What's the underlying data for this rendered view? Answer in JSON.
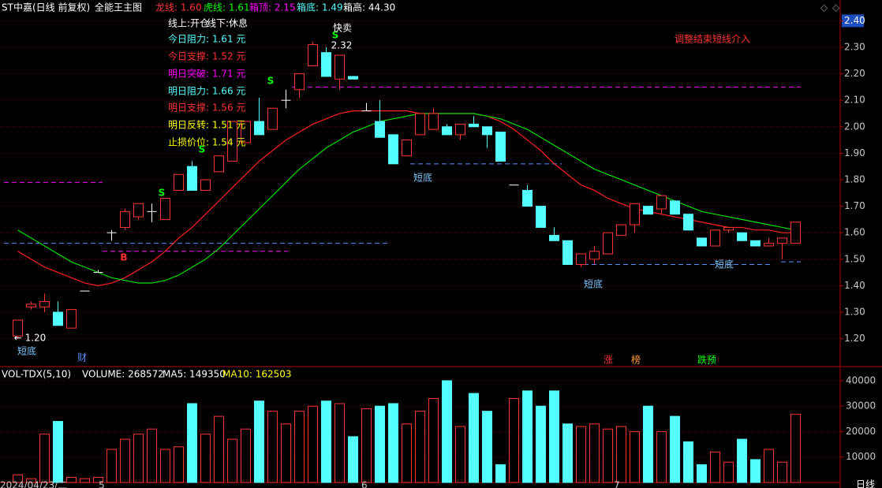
{
  "chart_data": [
    {
      "type": "candlestick",
      "title": "ST中嘉(日线 前复权)",
      "indicator": "全能王主图",
      "indicator_values": [
        {
          "text": "龙线: 1.60",
          "color": "#ff3232"
        },
        {
          "text": "虎线: 1.61",
          "color": "#00ff00"
        },
        {
          "text": "箱顶: 2.15",
          "color": "#ff00ff"
        },
        {
          "text": "箱底: 1.49",
          "color": "#54ffff"
        },
        {
          "text": "箱高: 44.30",
          "color": "#ffffff"
        }
      ],
      "info_panel": [
        {
          "text": "线上:开仓",
          "color": "#ffffff"
        },
        {
          "text": "线下:休息",
          "color": "#ffffff"
        },
        {
          "text": "今日阻力: 1.61 元",
          "color": "#54ffff"
        },
        {
          "text": "今日支撑: 1.52 元",
          "color": "#ff3232"
        },
        {
          "text": "明日突破: 1.71 元",
          "color": "#ff00ff"
        },
        {
          "text": "明日阻力: 1.66 元",
          "color": "#54ffff"
        },
        {
          "text": "明日支撑: 1.56 元",
          "color": "#ff3232"
        },
        {
          "text": "明日反转: 1.51 元",
          "color": "#ffff00"
        },
        {
          "text": "止损价位: 1.54 元",
          "color": "#ffff00"
        }
      ],
      "open": [
        1.21,
        1.32,
        1.32,
        1.3,
        1.24,
        1.38,
        1.45,
        1.6,
        1.62,
        1.66,
        1.68,
        1.65,
        1.76,
        1.85,
        1.76,
        1.83,
        1.87,
        1.94,
        2.02,
        1.99,
        2.1,
        2.14,
        2.23,
        2.28,
        2.18,
        2.19,
        2.06,
        2.02,
        1.97,
        1.89,
        1.97,
        1.99,
        2.0,
        1.97,
        2.01,
        2.0,
        1.98,
        1.78,
        1.76,
        1.7,
        1.59,
        1.57,
        1.48,
        1.5,
        1.52,
        1.59,
        1.63,
        1.7,
        1.69,
        1.72,
        1.67,
        1.58,
        1.55,
        1.61,
        1.6,
        1.57,
        1.55,
        1.56,
        1.56
      ],
      "high": [
        1.27,
        1.34,
        1.37,
        1.34,
        1.31,
        1.38,
        1.46,
        1.61,
        1.69,
        1.71,
        1.71,
        1.73,
        1.82,
        1.87,
        1.8,
        1.89,
        2.02,
        2.02,
        2.11,
        2.07,
        2.14,
        2.2,
        2.32,
        2.3,
        2.27,
        2.19,
        2.09,
        2.1,
        1.97,
        1.95,
        2.05,
        2.07,
        2.01,
        2.01,
        2.04,
        2.0,
        1.98,
        1.78,
        1.78,
        1.7,
        1.62,
        1.57,
        1.52,
        1.55,
        1.6,
        1.63,
        1.71,
        1.7,
        1.74,
        1.72,
        1.67,
        1.58,
        1.61,
        1.62,
        1.6,
        1.57,
        1.58,
        1.58,
        1.64
      ],
      "low": [
        1.2,
        1.31,
        1.3,
        1.25,
        1.24,
        1.38,
        1.45,
        1.57,
        1.61,
        1.65,
        1.64,
        1.65,
        1.76,
        1.76,
        1.76,
        1.83,
        1.87,
        1.94,
        1.97,
        1.99,
        2.07,
        2.11,
        2.23,
        2.19,
        2.14,
        2.18,
        2.06,
        1.96,
        1.86,
        1.89,
        1.97,
        1.99,
        1.97,
        1.95,
        2.0,
        1.92,
        1.87,
        1.78,
        1.7,
        1.62,
        1.57,
        1.48,
        1.47,
        1.48,
        1.52,
        1.59,
        1.6,
        1.67,
        1.67,
        1.67,
        1.61,
        1.55,
        1.55,
        1.6,
        1.57,
        1.55,
        1.55,
        1.5,
        1.56
      ],
      "close": [
        1.27,
        1.33,
        1.34,
        1.25,
        1.31,
        1.38,
        1.45,
        1.6,
        1.68,
        1.71,
        1.68,
        1.73,
        1.82,
        1.76,
        1.8,
        1.89,
        2.02,
        2.02,
        1.97,
        2.07,
        2.1,
        2.2,
        2.31,
        2.19,
        2.27,
        2.18,
        2.06,
        1.96,
        1.86,
        1.95,
        2.05,
        2.05,
        1.97,
        2.01,
        2.0,
        1.97,
        1.87,
        1.78,
        1.7,
        1.62,
        1.57,
        1.48,
        1.52,
        1.53,
        1.6,
        1.63,
        1.71,
        1.67,
        1.74,
        1.67,
        1.61,
        1.55,
        1.61,
        1.62,
        1.57,
        1.55,
        1.56,
        1.58,
        1.64
      ],
      "up_color": "#ff3232",
      "down_color": "#54ffff",
      "flat_color": "#ffffff",
      "series": [
        {
          "color": "#ff2020",
          "values": [
            1.53,
            1.5,
            1.47,
            1.45,
            1.43,
            1.41,
            1.4,
            1.41,
            1.43,
            1.46,
            1.49,
            1.53,
            1.58,
            1.62,
            1.67,
            1.72,
            1.77,
            1.82,
            1.87,
            1.91,
            1.95,
            1.98,
            2.01,
            2.03,
            2.05,
            2.06,
            2.06,
            2.06,
            2.06,
            2.06,
            2.05,
            2.05,
            2.05,
            2.05,
            2.05,
            2.04,
            2.02,
            1.99,
            1.95,
            1.91,
            1.86,
            1.82,
            1.78,
            1.76,
            1.73,
            1.71,
            1.69,
            1.68,
            1.67,
            1.66,
            1.65,
            1.64,
            1.63,
            1.62,
            1.62,
            1.61,
            1.61,
            1.6,
            1.6
          ]
        },
        {
          "color": "#00e000",
          "values": [
            1.61,
            1.58,
            1.55,
            1.52,
            1.49,
            1.47,
            1.45,
            1.43,
            1.42,
            1.41,
            1.41,
            1.42,
            1.44,
            1.47,
            1.5,
            1.54,
            1.59,
            1.64,
            1.69,
            1.74,
            1.79,
            1.84,
            1.88,
            1.92,
            1.95,
            1.98,
            2.0,
            2.02,
            2.03,
            2.04,
            2.05,
            2.05,
            2.05,
            2.05,
            2.05,
            2.04,
            2.03,
            2.01,
            1.99,
            1.96,
            1.93,
            1.9,
            1.87,
            1.84,
            1.82,
            1.8,
            1.78,
            1.76,
            1.74,
            1.72,
            1.7,
            1.68,
            1.67,
            1.66,
            1.65,
            1.64,
            1.63,
            1.62,
            1.61
          ]
        }
      ],
      "levels": [
        {
          "value": 2.15,
          "color": "#ff00ff"
        },
        {
          "value": 1.56,
          "color": "#5a8fff"
        },
        {
          "value": 1.53,
          "color": "#ff00ff"
        },
        {
          "value": 1.79,
          "color": "#ff00ff"
        },
        {
          "value": 1.86,
          "color": "#5a8fff"
        },
        {
          "value": 1.48,
          "color": "#5a8fff"
        },
        {
          "value": 1.49,
          "color": "#5a8fff"
        }
      ],
      "annotations": [
        {
          "text": "S",
          "color": "#00ff00"
        },
        {
          "text": "S",
          "color": "#00ff00"
        },
        {
          "text": "S",
          "color": "#00ff00"
        },
        {
          "text": "S",
          "color": "#00ff00"
        },
        {
          "text": "B",
          "color": "#ff3232"
        },
        {
          "text": "快卖",
          "color": "#ffffff"
        },
        {
          "text": "2.32",
          "color": "#ffffff"
        },
        {
          "text": "← 1.20",
          "color": "#ffffff"
        },
        {
          "text": "短底",
          "color": "#7fc8ff"
        },
        {
          "text": "短底",
          "color": "#7fc8ff"
        },
        {
          "text": "短底",
          "color": "#7fc8ff"
        },
        {
          "text": "短底",
          "color": "#7fc8ff"
        },
        {
          "text": "调整结束短线介入",
          "color": "#ff3232"
        },
        {
          "text": "财",
          "color": "#5a8fff"
        },
        {
          "text": "涨",
          "color": "#ff3232"
        },
        {
          "text": "榜",
          "color": "#ff9933"
        },
        {
          "text": "跌预",
          "color": "#00ff00"
        }
      ],
      "ylim": [
        1.1,
        2.43
      ],
      "yticks": [
        {
          "value": 1.2,
          "label": "1.20"
        },
        {
          "value": 1.3,
          "label": "1.30"
        },
        {
          "value": 1.4,
          "label": "1.40"
        },
        {
          "value": 1.5,
          "label": "1.50"
        },
        {
          "value": 1.6,
          "label": "1.60"
        },
        {
          "value": 1.7,
          "label": "1.70"
        },
        {
          "value": 1.8,
          "label": "1.80"
        },
        {
          "value": 1.9,
          "label": "1.90"
        },
        {
          "value": 2.0,
          "label": "2.00"
        },
        {
          "value": 2.1,
          "label": "2.10"
        },
        {
          "value": 2.2,
          "label": "2.20"
        },
        {
          "value": 2.3,
          "label": "2.30"
        },
        {
          "value": 2.4,
          "label": "2.40"
        }
      ],
      "grid": true
    },
    {
      "type": "bar",
      "title": "VOL-TDX(5,10)",
      "stats": [
        {
          "text": "VOLUME: 268572",
          "color": "#ffffff"
        },
        {
          "text": "MA5: 149350",
          "color": "#ffffff"
        },
        {
          "text": "MA10: 162503",
          "color": "#ffff00"
        }
      ],
      "values": [
        3000,
        1500,
        19000,
        24000,
        2000,
        1500,
        2000,
        13000,
        17000,
        19000,
        21000,
        13000,
        14000,
        31000,
        19000,
        26000,
        17000,
        21000,
        32000,
        28000,
        23000,
        28000,
        30000,
        32000,
        31000,
        18000,
        29000,
        30000,
        31000,
        23000,
        28000,
        33000,
        40000,
        22000,
        35000,
        28000,
        7000,
        33000,
        36000,
        30000,
        36000,
        23000,
        22000,
        23000,
        21000,
        22000,
        20000,
        30000,
        20000,
        26000,
        16000,
        7000,
        12000,
        8000,
        17000,
        9000,
        13000,
        8000,
        26857
      ],
      "ylim": [
        0,
        44000
      ],
      "yticks": [
        10000,
        20000,
        30000,
        40000
      ],
      "grid": true,
      "x_labels": [
        "2024/04/23/二",
        "5",
        "6",
        "7"
      ],
      "period": "日线"
    }
  ]
}
